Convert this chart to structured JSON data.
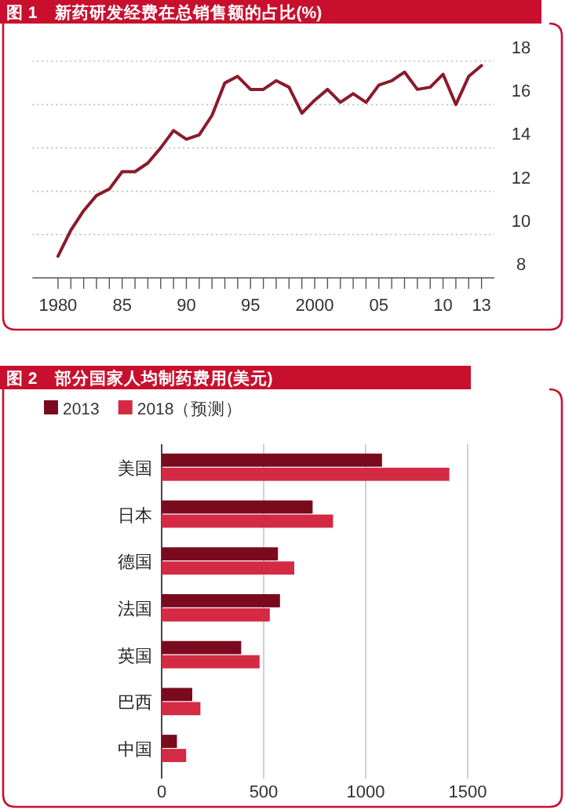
{
  "chart_data": [
    {
      "type": "line",
      "title": "图 1　新药研发经费在总销售额的占比(%)",
      "x": [
        1980,
        1981,
        1982,
        1983,
        1984,
        1985,
        1986,
        1987,
        1988,
        1989,
        1990,
        1991,
        1992,
        1993,
        1994,
        1995,
        1996,
        1997,
        1998,
        1999,
        2000,
        2001,
        2002,
        2003,
        2004,
        2005,
        2006,
        2007,
        2008,
        2009,
        2010,
        2011,
        2012,
        2013
      ],
      "series": [
        {
          "color": "#8b1a2c",
          "values": [
            9.0,
            10.2,
            11.1,
            11.8,
            12.1,
            12.9,
            12.9,
            13.3,
            14.0,
            14.8,
            14.4,
            14.6,
            15.5,
            17.0,
            17.3,
            16.7,
            16.7,
            17.1,
            16.8,
            15.6,
            16.2,
            16.7,
            16.1,
            16.5,
            16.1,
            16.9,
            17.1,
            17.5,
            16.7,
            16.8,
            17.4,
            16.0,
            17.3,
            17.8
          ]
        }
      ],
      "xlim": [
        1978,
        2014
      ],
      "ylim": [
        8,
        18
      ],
      "xticks": [
        1980,
        {
          "value": 1981,
          "label": null
        },
        {
          "value": 1982,
          "label": null
        },
        {
          "value": 1983,
          "label": null
        },
        {
          "value": 1984,
          "label": null
        },
        {
          "value": 1985,
          "label": "85"
        },
        {
          "value": 1986,
          "label": null
        },
        {
          "value": 1987,
          "label": null
        },
        {
          "value": 1988,
          "label": null
        },
        {
          "value": 1989,
          "label": null
        },
        {
          "value": 1990,
          "label": "90"
        },
        {
          "value": 1991,
          "label": null
        },
        {
          "value": 1992,
          "label": null
        },
        {
          "value": 1993,
          "label": null
        },
        {
          "value": 1994,
          "label": null
        },
        {
          "value": 1995,
          "label": "95"
        },
        {
          "value": 1996,
          "label": null
        },
        {
          "value": 1997,
          "label": null
        },
        {
          "value": 1998,
          "label": null
        },
        {
          "value": 1999,
          "label": null
        },
        2000,
        {
          "value": 2001,
          "label": null
        },
        {
          "value": 2002,
          "label": null
        },
        {
          "value": 2003,
          "label": null
        },
        {
          "value": 2004,
          "label": null
        },
        {
          "value": 2005,
          "label": "05"
        },
        {
          "value": 2006,
          "label": null
        },
        {
          "value": 2007,
          "label": null
        },
        {
          "value": 2008,
          "label": null
        },
        {
          "value": 2009,
          "label": null
        },
        {
          "value": 2010,
          "label": "10"
        },
        {
          "value": 2011,
          "label": null
        },
        {
          "value": 2012,
          "label": null
        },
        {
          "value": 2013,
          "label": "13"
        }
      ],
      "yticks": [
        8,
        10,
        12,
        14,
        16,
        18
      ],
      "grid": "y",
      "line_style": "solid"
    },
    {
      "type": "bar",
      "orientation": "horizontal",
      "title": "图 2　部分国家人均制药费用(美元)",
      "categories": [
        "美国",
        "日本",
        "德国",
        "法国",
        "英国",
        "巴西",
        "中国"
      ],
      "series": [
        {
          "name": "2013",
          "color": "#7a0a1e",
          "values": [
            1080,
            740,
            570,
            580,
            390,
            150,
            75
          ]
        },
        {
          "name": "2018（预测）",
          "color": "#d42a44",
          "values": [
            1410,
            840,
            650,
            530,
            480,
            190,
            120
          ]
        }
      ],
      "xlim": [
        0,
        1500
      ],
      "xticks": [
        0,
        500,
        1000,
        1500
      ],
      "grid": "x",
      "legend": "top left"
    }
  ]
}
